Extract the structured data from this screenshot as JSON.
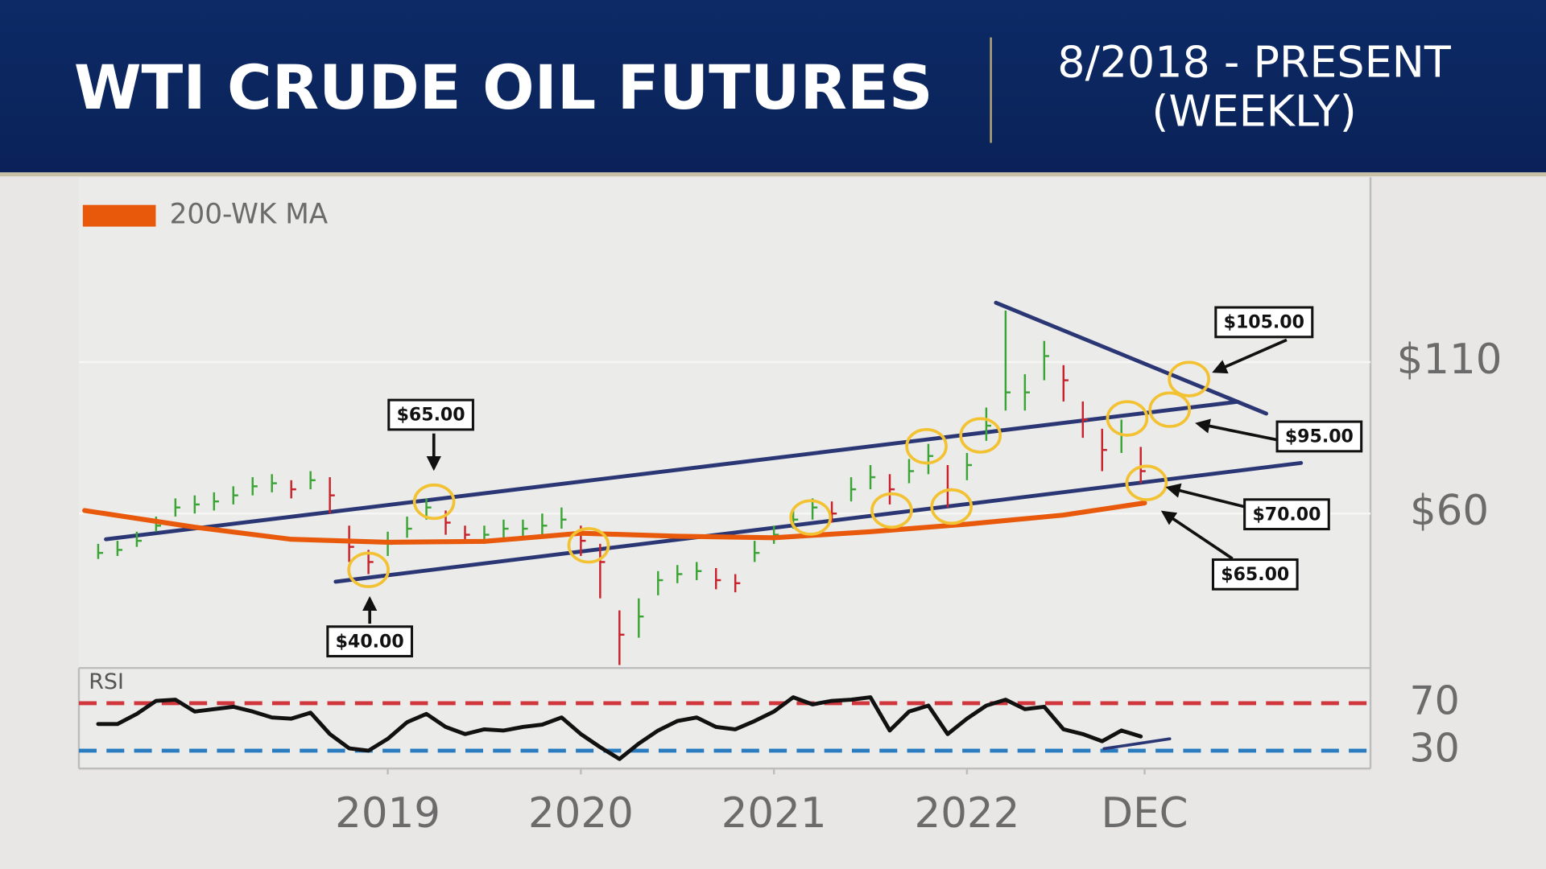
{
  "header": {
    "title": "WTI CRUDE OIL FUTURES",
    "subtitle": [
      "8/2018 - PRESENT",
      "(WEEKLY)"
    ]
  },
  "chart_data": {
    "type": "ohlc",
    "x": [
      2017.5,
      2017.6,
      2017.7,
      2017.8,
      2017.9,
      2018.0,
      2018.1,
      2018.2,
      2018.3,
      2018.4,
      2018.5,
      2018.6,
      2018.7,
      2018.8,
      2018.9,
      2019.0,
      2019.1,
      2019.2,
      2019.3,
      2019.4,
      2019.5,
      2019.6,
      2019.7,
      2019.8,
      2019.9,
      2020.0,
      2020.1,
      2020.2,
      2020.3,
      2020.4,
      2020.5,
      2020.6,
      2020.7,
      2020.8,
      2020.9,
      2021.0,
      2021.1,
      2021.2,
      2021.3,
      2021.4,
      2021.5,
      2021.6,
      2021.7,
      2021.8,
      2021.9,
      2022.0,
      2022.1,
      2022.2,
      2022.3,
      2022.4,
      2022.5,
      2022.6,
      2022.7,
      2022.8,
      2022.9
    ],
    "high": [
      50,
      51,
      54,
      59,
      65,
      66,
      67,
      69,
      72,
      73,
      71,
      74,
      72,
      56,
      48,
      54,
      59,
      65,
      61,
      56,
      56,
      58,
      58,
      60,
      62,
      56,
      50,
      28,
      32,
      41,
      43,
      44,
      42,
      40,
      51,
      56,
      61,
      65,
      64,
      72,
      76,
      73,
      78,
      83,
      76,
      80,
      95,
      127,
      106,
      117,
      109,
      97,
      88,
      91,
      82
    ],
    "low": [
      45,
      46,
      49,
      54,
      59,
      60,
      61,
      63,
      66,
      67,
      65,
      68,
      60,
      44,
      40,
      46,
      52,
      58,
      53,
      50,
      50,
      52,
      52,
      53,
      55,
      46,
      32,
      10,
      19,
      33,
      37,
      38,
      35,
      34,
      44,
      50,
      55,
      58,
      57,
      64,
      68,
      63,
      70,
      73,
      62,
      71,
      84,
      94,
      94,
      104,
      97,
      85,
      74,
      80,
      70
    ],
    "close": [
      47,
      48,
      51,
      56,
      62,
      63,
      64,
      66,
      69,
      70,
      68,
      71,
      66,
      49,
      44,
      50,
      55,
      62,
      57,
      53,
      53,
      55,
      55,
      56,
      58,
      51,
      44,
      20,
      26,
      38,
      40,
      41,
      38,
      37,
      47,
      53,
      58,
      62,
      60,
      68,
      72,
      68,
      74,
      79,
      68,
      76,
      89,
      100,
      100,
      112,
      104,
      91,
      81,
      86,
      74
    ],
    "up_color": "#3aa535",
    "down_color": "#c8232c",
    "overlays": [
      {
        "name": "200-WK MA",
        "color": "#e8590c",
        "x": [
          2017.43,
          2018.0,
          2018.5,
          2019.0,
          2019.5,
          2020.0,
          2020.5,
          2021.0,
          2021.5,
          2022.0,
          2022.5,
          2022.92
        ],
        "values": [
          61,
          55.5,
          51.5,
          50.5,
          50.8,
          53.5,
          52.5,
          52,
          54,
          56.5,
          59.5,
          63.5
        ]
      }
    ],
    "legend": "top-left",
    "trendlines": {
      "color": "#2b3775",
      "lines": [
        {
          "x": [
            2017.54,
            2023.4
          ],
          "values": [
            51.5,
            96.9
          ]
        },
        {
          "x": [
            2018.73,
            2023.73
          ],
          "values": [
            37.5,
            76.7
          ]
        },
        {
          "x": [
            2022.15,
            2023.55
          ],
          "values": [
            129.6,
            93.0
          ]
        }
      ]
    },
    "highlights": {
      "color": "#f2c232",
      "x": [
        2018.9,
        2019.24,
        2020.04,
        2021.19,
        2021.61,
        2021.79,
        2021.92,
        2022.07,
        2022.83,
        2023.05,
        2023.15,
        2022.93
      ],
      "values": [
        41.4,
        63.9,
        49.5,
        58.7,
        61.0,
        82.2,
        62.3,
        85.8,
        91.4,
        94.3,
        104.4,
        70.1
      ]
    },
    "callouts": [
      {
        "label": "$65.00"
      },
      {
        "label": "$40.00"
      },
      {
        "label": "$105.00"
      },
      {
        "label": "$95.00"
      },
      {
        "label": "$70.00"
      },
      {
        "label": "$65.00"
      }
    ],
    "xlim": [
      2017.4,
      2024.09
    ],
    "xticks": [
      2019,
      2020,
      2021,
      2022,
      {
        "value": 2022.92,
        "label": "DEC"
      }
    ],
    "ylim": [
      9,
      171
    ],
    "yticks": [
      {
        "value": 110,
        "label": "$110"
      },
      {
        "value": 60,
        "label": "$60"
      }
    ],
    "grid": true,
    "rsi": {
      "label": "RSI",
      "color": "#111111",
      "values": [
        52.5,
        52.5,
        61,
        72,
        73,
        63,
        65,
        67,
        63,
        58,
        57,
        62,
        44,
        32,
        30,
        40,
        54,
        61,
        50,
        44,
        48,
        47,
        50,
        52,
        58,
        44,
        33,
        23,
        36,
        47,
        55,
        58,
        50,
        48,
        55,
        63,
        75,
        69,
        72,
        73,
        75,
        47,
        63,
        68,
        44,
        57,
        68,
        73,
        65,
        67,
        48,
        44,
        38,
        47,
        42
      ],
      "ylim": [
        15,
        98
      ],
      "yticks": [
        70,
        30
      ],
      "tick_colors": [
        "#d0363c",
        "#2a7cc0"
      ],
      "trendline": {
        "x": [
          2022.71,
          2023.05
        ],
        "values": [
          31.7,
          40.0
        ]
      }
    }
  }
}
